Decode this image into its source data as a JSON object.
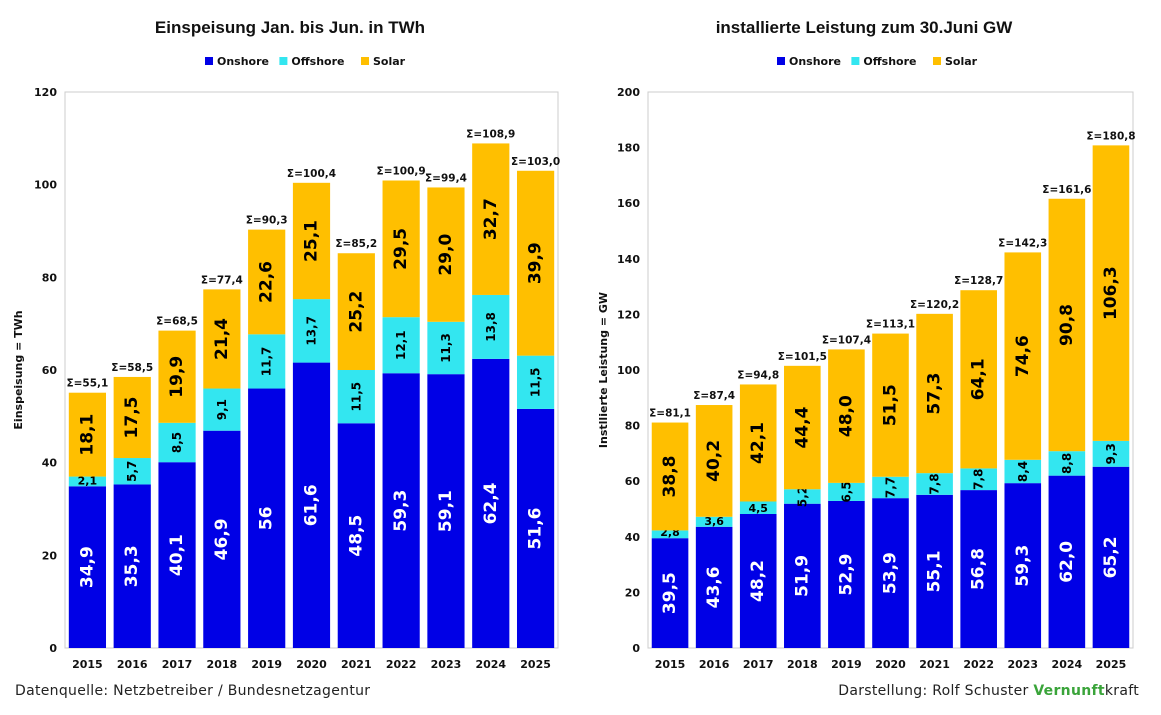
{
  "footer": {
    "source": "Datenquelle: Netzbetreiber / Bundesnetzagentur",
    "credit_prefix": "Darstellung:  Rolf Schuster",
    "brand_green": "Vernunft",
    "brand_rest": "kraft"
  },
  "colors": {
    "onshore": "#0000e6",
    "offshore": "#33e6f0",
    "solar": "#ffbf00",
    "plot_border": "#cccccc",
    "brand_green": "#3aa43a"
  },
  "chart_data": [
    {
      "type": "bar",
      "stacked": true,
      "title": "Einspeisung Jan. bis Jun. in TWh",
      "ylabel": "Einspeisung = TWh",
      "xlabel": "",
      "ylim": [
        0,
        120
      ],
      "yticks": [
        0,
        20,
        40,
        60,
        80,
        100,
        120
      ],
      "legend": "top-center",
      "categories": [
        "2015",
        "2016",
        "2017",
        "2018",
        "2019",
        "2020",
        "2021",
        "2022",
        "2023",
        "2024",
        "2025"
      ],
      "series": [
        {
          "name": "Onshore",
          "values": [
            34.9,
            35.3,
            40.1,
            46.9,
            56,
            61.6,
            48.5,
            59.3,
            59.1,
            62.4,
            51.6
          ],
          "labels": [
            "34,9",
            "35,3",
            "40,1",
            "46,9",
            "56",
            "61,6",
            "48,5",
            "59,3",
            "59,1",
            "62,4",
            "51,6"
          ]
        },
        {
          "name": "Offshore",
          "values": [
            2.1,
            5.7,
            8.5,
            9.1,
            11.7,
            13.7,
            11.5,
            12.1,
            11.3,
            13.8,
            11.5
          ],
          "labels": [
            "2,1",
            "5,7",
            "8,5",
            "9,1",
            "11,7",
            "13,7",
            "11,5",
            "12,1",
            "11,3",
            "13,8",
            "11,5"
          ]
        },
        {
          "name": "Solar",
          "values": [
            18.1,
            17.5,
            19.9,
            21.4,
            22.6,
            25.1,
            25.2,
            29.5,
            29.0,
            32.7,
            39.9
          ],
          "labels": [
            "18,1",
            "17,5",
            "19,9",
            "21,4",
            "22,6",
            "25,1",
            "25,2",
            "29,5",
            "29,0",
            "32,7",
            "39,9"
          ]
        }
      ],
      "totals": [
        "Σ=55,1",
        "Σ=58,5",
        "Σ=68,5",
        "Σ=77,4",
        "Σ=90,3",
        "Σ=100,4",
        "Σ=85,2",
        "Σ=100,9",
        "Σ=99,4",
        "Σ=108,9",
        "Σ=103,0"
      ]
    },
    {
      "type": "bar",
      "stacked": true,
      "title": "installierte Leistung zum 30.Juni GW",
      "ylabel": "Instllierte Leistung  = GW",
      "xlabel": "",
      "ylim": [
        0,
        200
      ],
      "yticks": [
        0,
        20,
        40,
        60,
        80,
        100,
        120,
        140,
        160,
        180,
        200
      ],
      "legend": "top-center",
      "categories": [
        "2015",
        "2016",
        "2017",
        "2018",
        "2019",
        "2020",
        "2021",
        "2022",
        "2023",
        "2024",
        "2025"
      ],
      "series": [
        {
          "name": "Onshore",
          "values": [
            39.5,
            43.6,
            48.2,
            51.9,
            52.9,
            53.9,
            55.1,
            56.8,
            59.3,
            62.0,
            65.2
          ],
          "labels": [
            "39,5",
            "43,6",
            "48,2",
            "51,9",
            "52,9",
            "53,9",
            "55,1",
            "56,8",
            "59,3",
            "62,0",
            "65,2"
          ]
        },
        {
          "name": "Offshore",
          "values": [
            2.8,
            3.6,
            4.5,
            5.2,
            6.5,
            7.7,
            7.8,
            7.8,
            8.4,
            8.8,
            9.3
          ],
          "labels": [
            "2,8",
            "3,6",
            "4,5",
            "5,2",
            "6,5",
            "7,7",
            "7,8",
            "7,8",
            "8,4",
            "8,8",
            "9,3"
          ]
        },
        {
          "name": "Solar",
          "values": [
            38.8,
            40.2,
            42.1,
            44.4,
            48.0,
            51.5,
            57.3,
            64.1,
            74.6,
            90.8,
            106.3
          ],
          "labels": [
            "38,8",
            "40,2",
            "42,1",
            "44,4",
            "48,0",
            "51,5",
            "57,3",
            "64,1",
            "74,6",
            "90,8",
            "106,3"
          ]
        }
      ],
      "totals": [
        "Σ=81,1",
        "Σ=87,4",
        "Σ=94,8",
        "Σ=101,5",
        "Σ=107,4",
        "Σ=113,1",
        "Σ=120,2",
        "Σ=128,7",
        "Σ=142,3",
        "Σ=161,6",
        "Σ=180,8"
      ]
    }
  ]
}
